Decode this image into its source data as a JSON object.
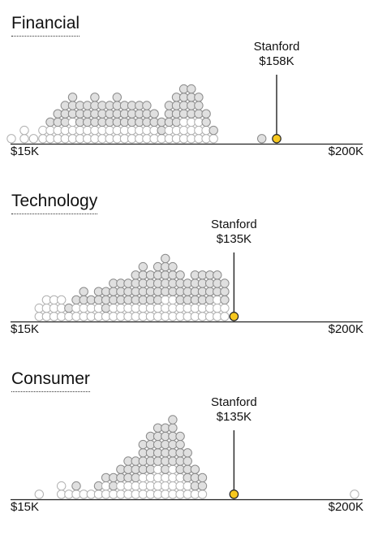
{
  "colors": {
    "highlight_fill": "#f7c81e",
    "highlight_stroke": "#222222",
    "dot_fill": "#e0e0e0",
    "dot_stroke": "#8a8a8a",
    "open_dot_stroke": "#b0b0b0",
    "baseline": "#222222"
  },
  "chart_data": [
    {
      "type": "scatter",
      "title": "Financial",
      "x_unit": "USD starting salary",
      "xlim": [
        15000,
        200000
      ],
      "tick_labels": [
        "$15K",
        "$200K"
      ],
      "highlight": {
        "label": "Stanford",
        "value_label": "$158K",
        "x": 158000
      },
      "columns": [
        {
          "x": 15000,
          "count": 1,
          "filled": 0
        },
        {
          "x": 22000,
          "count": 2,
          "filled": 0
        },
        {
          "x": 27000,
          "count": 1,
          "filled": 0
        },
        {
          "x": 32000,
          "count": 2,
          "filled": 0
        },
        {
          "x": 36000,
          "count": 3,
          "filled": 1
        },
        {
          "x": 40000,
          "count": 4,
          "filled": 2
        },
        {
          "x": 44000,
          "count": 5,
          "filled": 3
        },
        {
          "x": 48000,
          "count": 6,
          "filled": 3
        },
        {
          "x": 52000,
          "count": 5,
          "filled": 3
        },
        {
          "x": 56000,
          "count": 5,
          "filled": 3
        },
        {
          "x": 60000,
          "count": 6,
          "filled": 4
        },
        {
          "x": 64000,
          "count": 5,
          "filled": 3
        },
        {
          "x": 68000,
          "count": 5,
          "filled": 3
        },
        {
          "x": 72000,
          "count": 6,
          "filled": 4
        },
        {
          "x": 76000,
          "count": 5,
          "filled": 3
        },
        {
          "x": 80000,
          "count": 5,
          "filled": 3
        },
        {
          "x": 84000,
          "count": 5,
          "filled": 3
        },
        {
          "x": 88000,
          "count": 5,
          "filled": 3
        },
        {
          "x": 92000,
          "count": 4,
          "filled": 2
        },
        {
          "x": 96000,
          "count": 3,
          "filled": 2
        },
        {
          "x": 100000,
          "count": 5,
          "filled": 3
        },
        {
          "x": 104000,
          "count": 6,
          "filled": 4
        },
        {
          "x": 108000,
          "count": 7,
          "filled": 4
        },
        {
          "x": 112000,
          "count": 7,
          "filled": 4
        },
        {
          "x": 116000,
          "count": 6,
          "filled": 3
        },
        {
          "x": 120000,
          "count": 4,
          "filled": 2
        },
        {
          "x": 124000,
          "count": 2,
          "filled": 1
        },
        {
          "x": 150000,
          "count": 1,
          "filled": 1
        }
      ]
    },
    {
      "type": "scatter",
      "title": "Technology",
      "x_unit": "USD starting salary",
      "xlim": [
        15000,
        200000
      ],
      "tick_labels": [
        "$15K",
        "$200K"
      ],
      "highlight": {
        "label": "Stanford",
        "value_label": "$135K",
        "x": 135000
      },
      "columns": [
        {
          "x": 30000,
          "count": 2,
          "filled": 0
        },
        {
          "x": 34000,
          "count": 3,
          "filled": 0
        },
        {
          "x": 38000,
          "count": 3,
          "filled": 0
        },
        {
          "x": 42000,
          "count": 3,
          "filled": 0
        },
        {
          "x": 46000,
          "count": 2,
          "filled": 1
        },
        {
          "x": 50000,
          "count": 3,
          "filled": 1
        },
        {
          "x": 54000,
          "count": 4,
          "filled": 2
        },
        {
          "x": 58000,
          "count": 3,
          "filled": 1
        },
        {
          "x": 62000,
          "count": 4,
          "filled": 2
        },
        {
          "x": 66000,
          "count": 4,
          "filled": 3
        },
        {
          "x": 70000,
          "count": 5,
          "filled": 3
        },
        {
          "x": 74000,
          "count": 5,
          "filled": 3
        },
        {
          "x": 78000,
          "count": 5,
          "filled": 3
        },
        {
          "x": 82000,
          "count": 6,
          "filled": 4
        },
        {
          "x": 86000,
          "count": 7,
          "filled": 5
        },
        {
          "x": 90000,
          "count": 6,
          "filled": 4
        },
        {
          "x": 94000,
          "count": 7,
          "filled": 5
        },
        {
          "x": 98000,
          "count": 8,
          "filled": 5
        },
        {
          "x": 102000,
          "count": 7,
          "filled": 4
        },
        {
          "x": 106000,
          "count": 6,
          "filled": 4
        },
        {
          "x": 110000,
          "count": 5,
          "filled": 3
        },
        {
          "x": 114000,
          "count": 6,
          "filled": 4
        },
        {
          "x": 118000,
          "count": 6,
          "filled": 4
        },
        {
          "x": 122000,
          "count": 6,
          "filled": 4
        },
        {
          "x": 126000,
          "count": 6,
          "filled": 3
        },
        {
          "x": 130000,
          "count": 5,
          "filled": 3
        }
      ]
    },
    {
      "type": "scatter",
      "title": "Consumer",
      "x_unit": "USD starting salary",
      "xlim": [
        15000,
        200000
      ],
      "tick_labels": [
        "$15K",
        "$200K"
      ],
      "highlight": {
        "label": "Stanford",
        "value_label": "$135K",
        "x": 135000
      },
      "columns": [
        {
          "x": 30000,
          "count": 1,
          "filled": 0
        },
        {
          "x": 42000,
          "count": 2,
          "filled": 0
        },
        {
          "x": 46000,
          "count": 1,
          "filled": 0
        },
        {
          "x": 50000,
          "count": 2,
          "filled": 1
        },
        {
          "x": 54000,
          "count": 1,
          "filled": 0
        },
        {
          "x": 58000,
          "count": 1,
          "filled": 0
        },
        {
          "x": 62000,
          "count": 2,
          "filled": 1
        },
        {
          "x": 66000,
          "count": 3,
          "filled": 1
        },
        {
          "x": 70000,
          "count": 3,
          "filled": 2
        },
        {
          "x": 74000,
          "count": 4,
          "filled": 2
        },
        {
          "x": 78000,
          "count": 5,
          "filled": 3
        },
        {
          "x": 82000,
          "count": 5,
          "filled": 3
        },
        {
          "x": 86000,
          "count": 7,
          "filled": 4
        },
        {
          "x": 90000,
          "count": 8,
          "filled": 5
        },
        {
          "x": 94000,
          "count": 9,
          "filled": 5
        },
        {
          "x": 98000,
          "count": 9,
          "filled": 6
        },
        {
          "x": 102000,
          "count": 10,
          "filled": 6
        },
        {
          "x": 106000,
          "count": 8,
          "filled": 5
        },
        {
          "x": 110000,
          "count": 6,
          "filled": 4
        },
        {
          "x": 114000,
          "count": 4,
          "filled": 3
        },
        {
          "x": 118000,
          "count": 3,
          "filled": 2
        },
        {
          "x": 200000,
          "count": 1,
          "filled": 0
        }
      ]
    }
  ]
}
